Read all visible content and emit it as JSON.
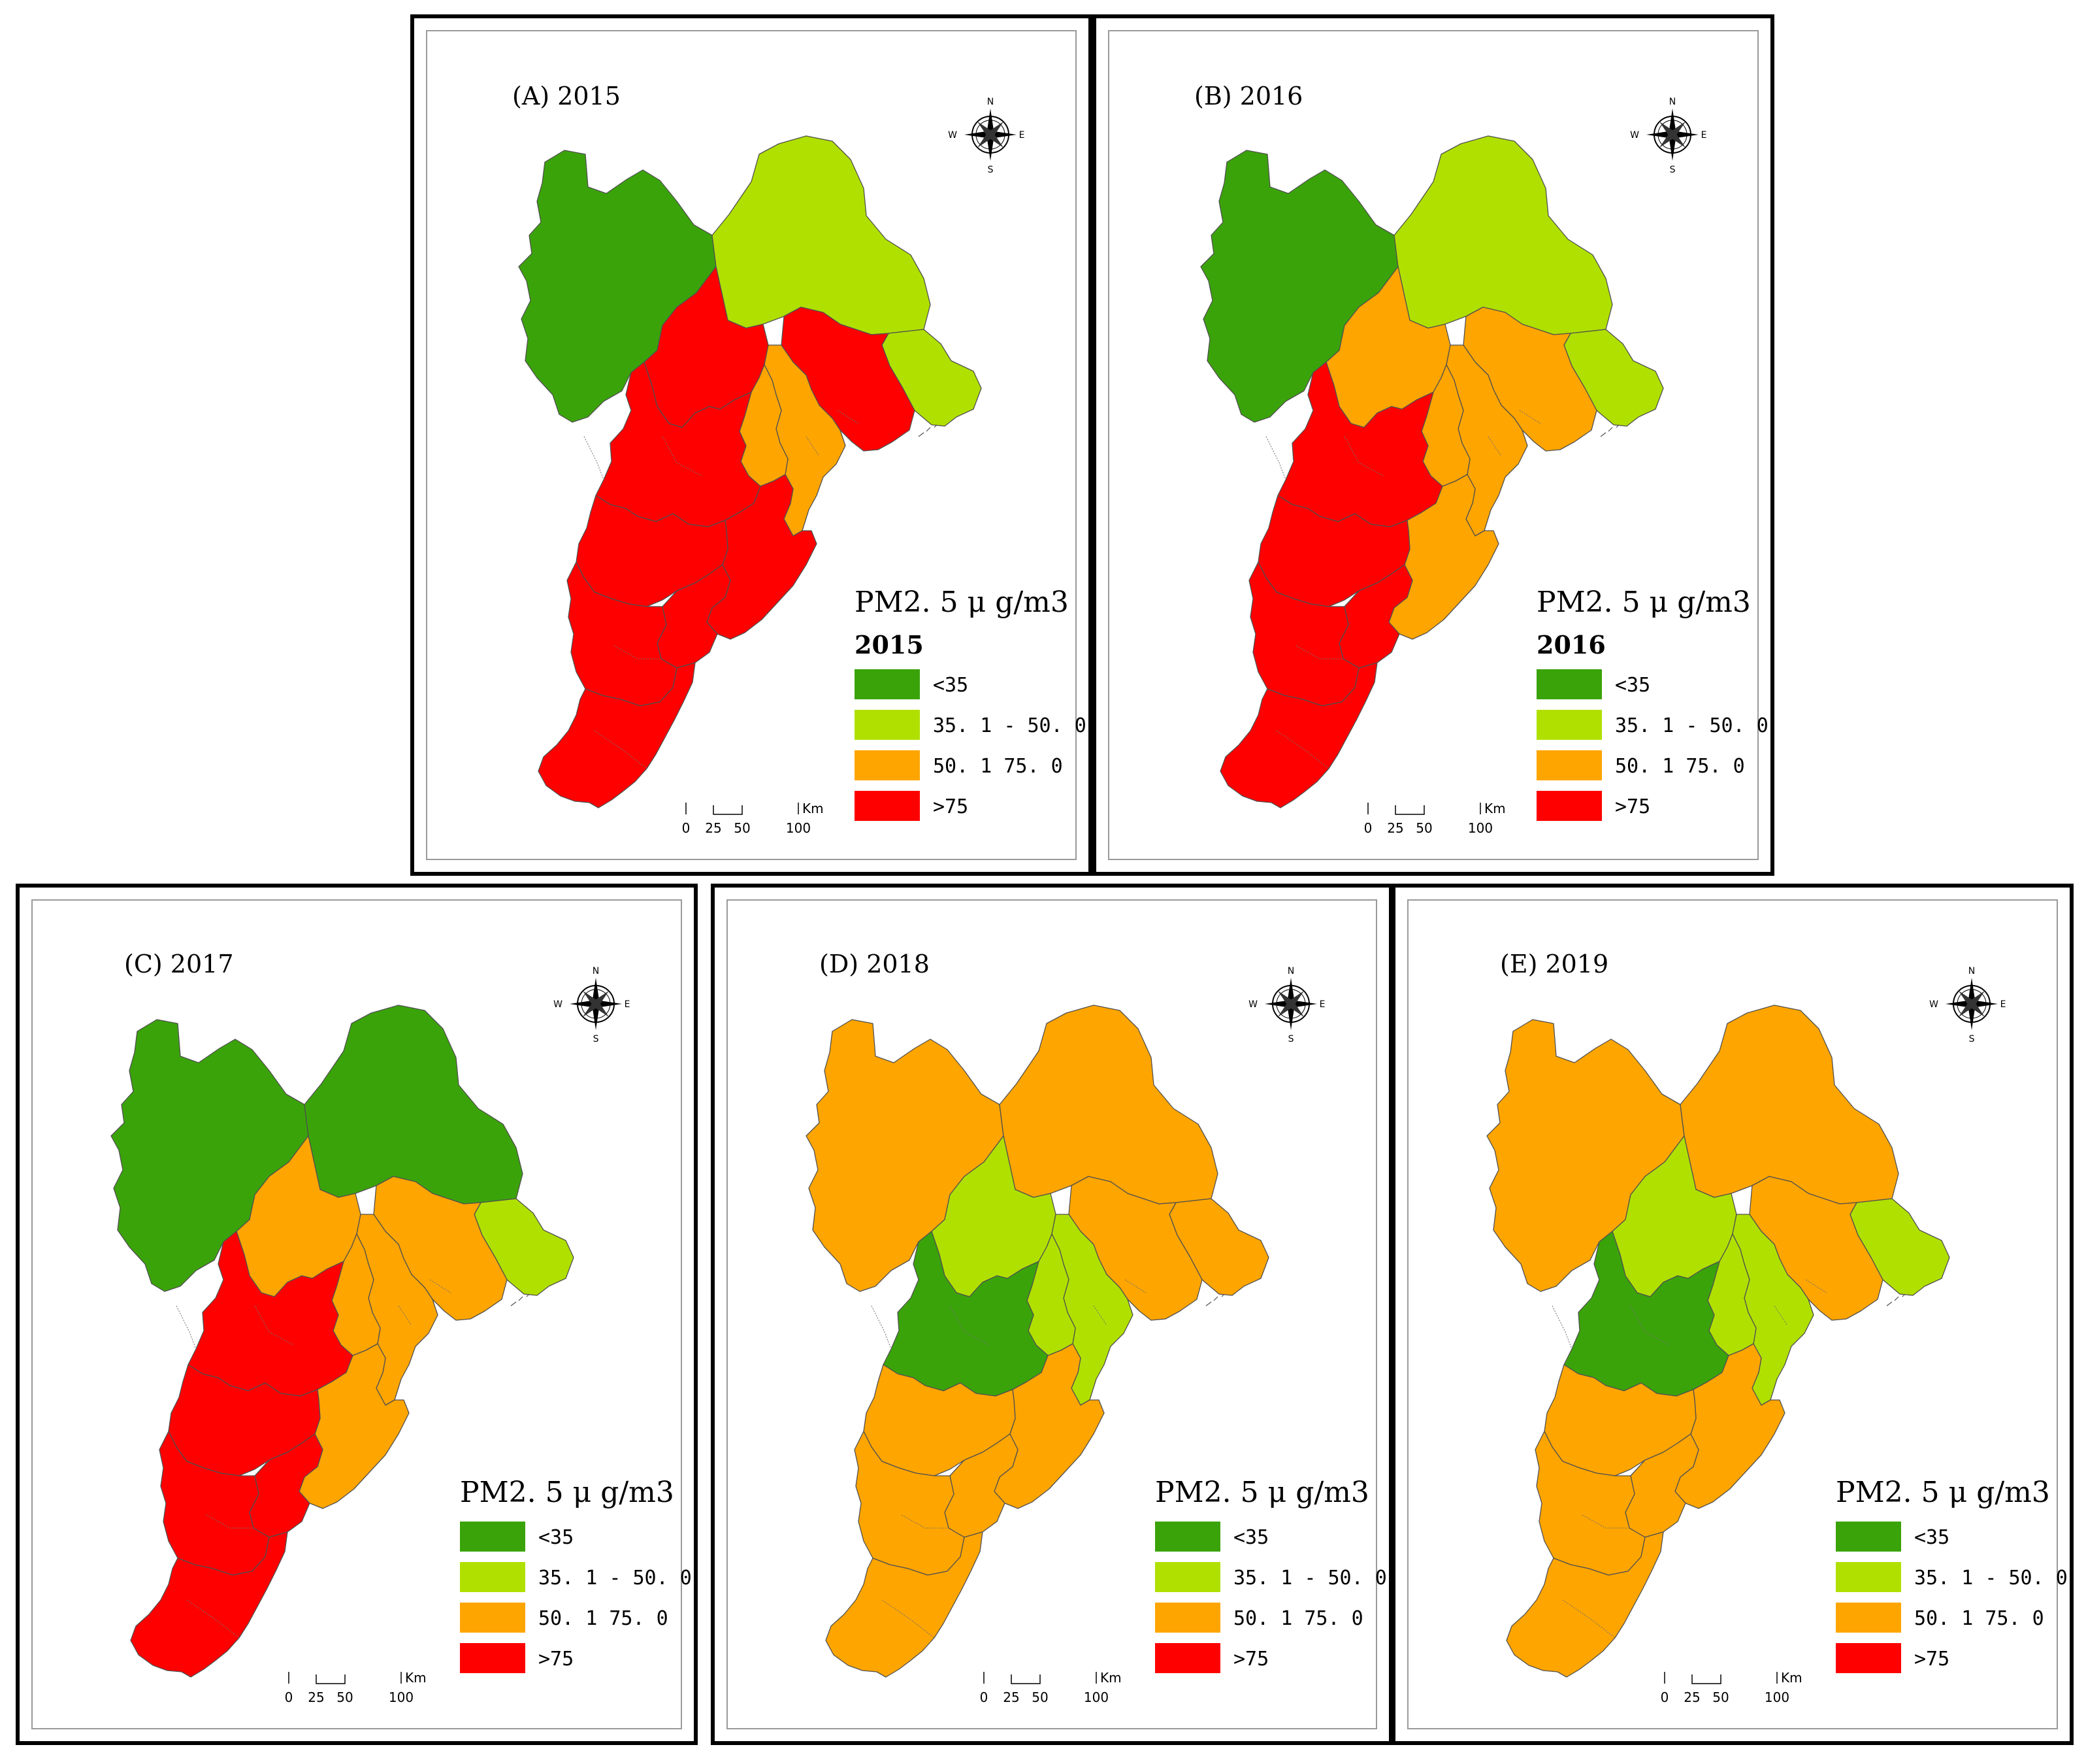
{
  "colors": {
    "lt35": "#3aa30a",
    "35to50": "#b0e000",
    "50to75": "#ffa500",
    "gt75": "#ff0000"
  },
  "legend": {
    "title": "PM2. 5 μ g/m3",
    "classes": [
      {
        "key": "lt35",
        "label": "<35"
      },
      {
        "key": "35to50",
        "label": "35. 1 - 50. 0"
      },
      {
        "key": "50to75",
        "label": "50. 1    75. 0"
      },
      {
        "key": "gt75",
        "label": ">75"
      }
    ]
  },
  "scale_bar": {
    "ticks": [
      "0",
      "25",
      "50",
      "100"
    ],
    "unit": "Km"
  },
  "compass": {
    "n": "N",
    "s": "S",
    "e": "E",
    "w": "W"
  },
  "panels": [
    {
      "title": "(A) 2015",
      "legend_year": "2015",
      "regions": {
        "zjk": "lt35",
        "cd": "35to50",
        "qhd": "35to50",
        "bj": "gt75",
        "ts": "gt75",
        "tj": "50to75",
        "lf": "50to75",
        "bd": "gt75",
        "cz": "gt75",
        "sjz": "gt75",
        "hs": "gt75",
        "xt": "gt75",
        "hd": "gt75"
      }
    },
    {
      "title": "(B) 2016",
      "legend_year": "2016",
      "regions": {
        "zjk": "lt35",
        "cd": "35to50",
        "qhd": "35to50",
        "bj": "50to75",
        "ts": "50to75",
        "tj": "50to75",
        "lf": "50to75",
        "bd": "gt75",
        "cz": "50to75",
        "sjz": "gt75",
        "hs": "gt75",
        "xt": "gt75",
        "hd": "gt75"
      }
    },
    {
      "title": "(C) 2017",
      "legend_year": "",
      "regions": {
        "zjk": "lt35",
        "cd": "lt35",
        "qhd": "35to50",
        "bj": "50to75",
        "ts": "50to75",
        "tj": "50to75",
        "lf": "50to75",
        "bd": "gt75",
        "cz": "50to75",
        "sjz": "gt75",
        "hs": "gt75",
        "xt": "gt75",
        "hd": "gt75"
      }
    },
    {
      "title": "(D) 2018",
      "legend_year": "",
      "regions": {
        "zjk": "50to75",
        "cd": "50to75",
        "qhd": "50to75",
        "bj": "35to50",
        "ts": "50to75",
        "tj": "35to50",
        "lf": "35to50",
        "bd": "lt35",
        "cz": "50to75",
        "sjz": "50to75",
        "hs": "50to75",
        "xt": "50to75",
        "hd": "50to75"
      }
    },
    {
      "title": "(E) 2019",
      "legend_year": "",
      "regions": {
        "zjk": "50to75",
        "cd": "50to75",
        "qhd": "35to50",
        "bj": "35to50",
        "ts": "50to75",
        "tj": "35to50",
        "lf": "35to50",
        "bd": "lt35",
        "cz": "50to75",
        "sjz": "50to75",
        "hs": "50to75",
        "xt": "50to75",
        "hd": "50to75"
      }
    }
  ]
}
